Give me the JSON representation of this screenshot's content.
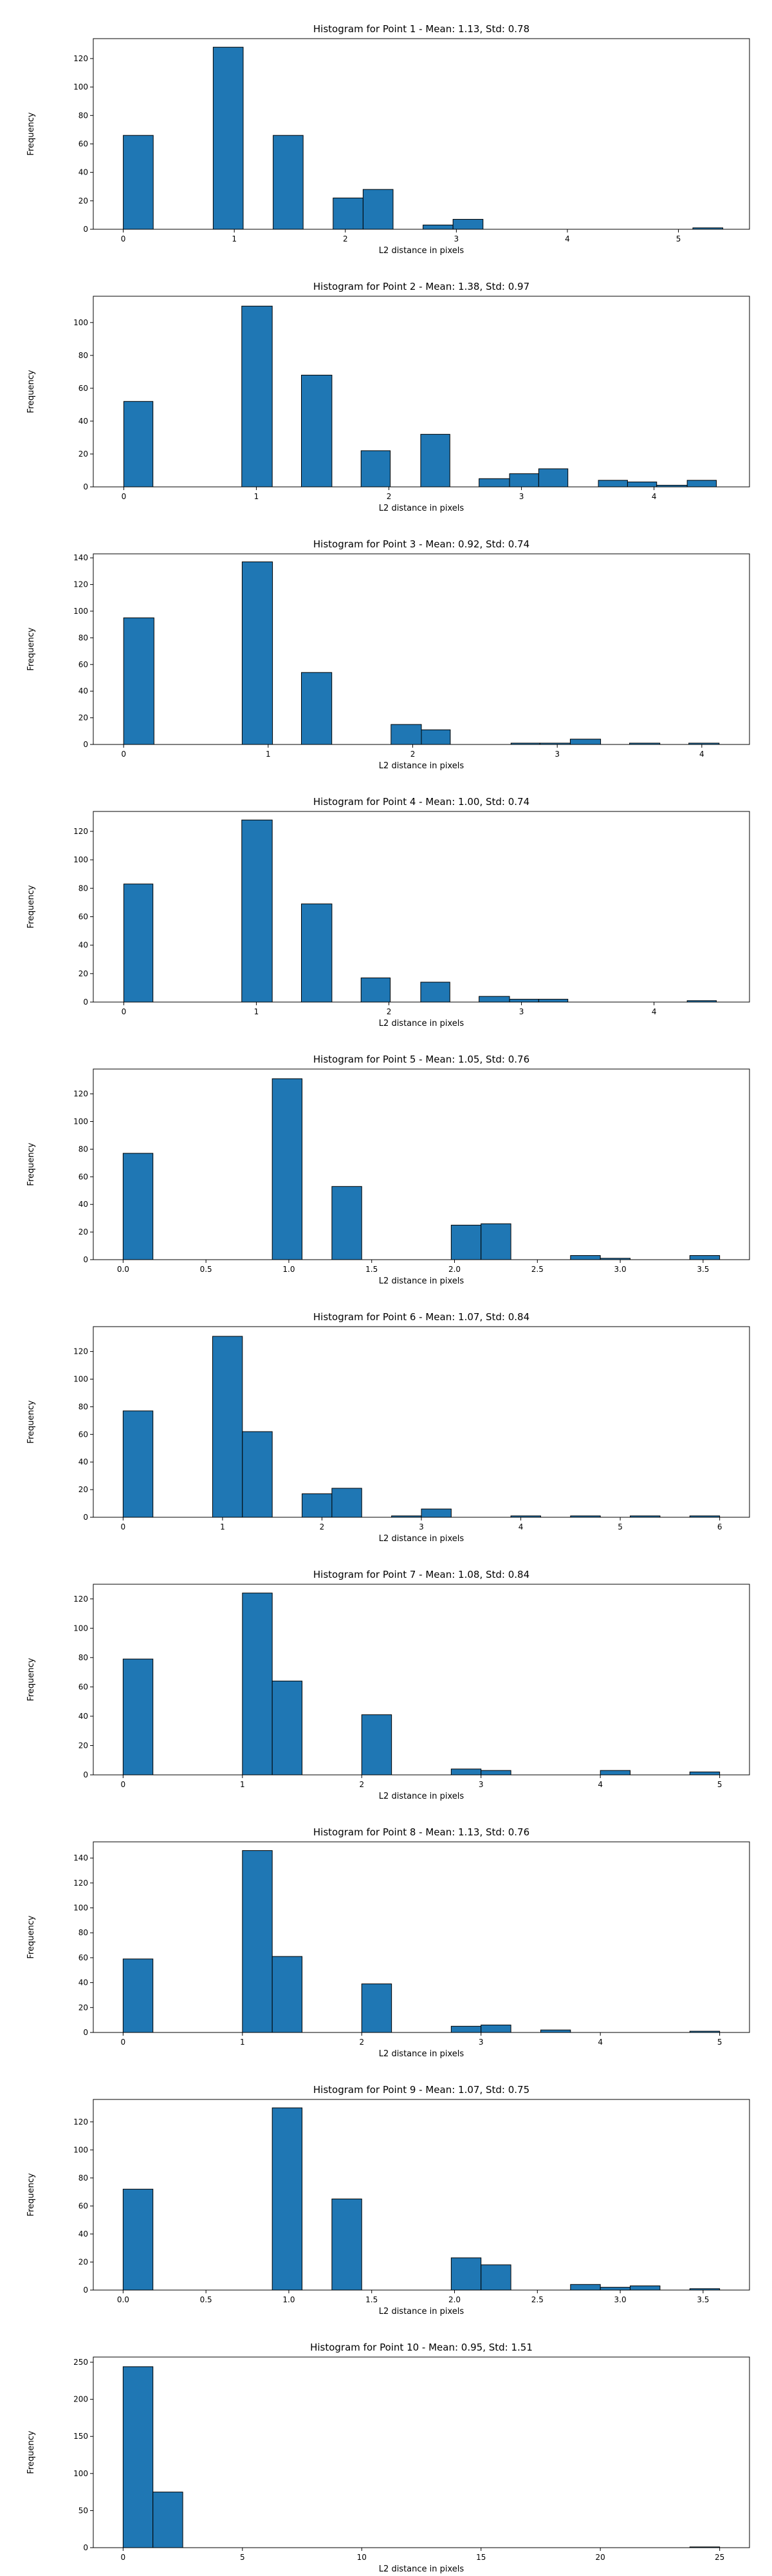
{
  "chart_data": [
    {
      "type": "bar",
      "title": "Histogram for Point 1 - Mean: 1.13, Std: 0.78",
      "xlabel": "L2 distance in pixels",
      "ylabel": "Frequency",
      "xlim": [
        -0.27,
        5.64
      ],
      "ylim": [
        0,
        134
      ],
      "xticks": [
        0,
        1,
        2,
        3,
        4,
        5
      ],
      "xtick_labels": [
        "0",
        "1",
        "2",
        "3",
        "4",
        "5"
      ],
      "yticks": [
        0,
        20,
        40,
        60,
        80,
        100,
        120
      ],
      "bins": [
        {
          "x0": 0.0,
          "x1": 0.27,
          "count": 66
        },
        {
          "x0": 0.81,
          "x1": 1.08,
          "count": 128
        },
        {
          "x0": 1.35,
          "x1": 1.62,
          "count": 66
        },
        {
          "x0": 1.89,
          "x1": 2.16,
          "count": 22
        },
        {
          "x0": 2.16,
          "x1": 2.43,
          "count": 28
        },
        {
          "x0": 2.7,
          "x1": 2.97,
          "count": 3
        },
        {
          "x0": 2.97,
          "x1": 3.24,
          "count": 7
        },
        {
          "x0": 5.13,
          "x1": 5.4,
          "count": 1
        }
      ]
    },
    {
      "type": "bar",
      "title": "Histogram for Point 2 - Mean: 1.38, Std: 0.97",
      "xlabel": "L2 distance in pixels",
      "ylabel": "Frequency",
      "xlim": [
        -0.23,
        4.72
      ],
      "ylim": [
        0,
        116
      ],
      "xticks": [
        0,
        1,
        2,
        3,
        4
      ],
      "xtick_labels": [
        "0",
        "1",
        "2",
        "3",
        "4"
      ],
      "yticks": [
        0,
        20,
        40,
        60,
        80,
        100
      ],
      "bins": [
        {
          "x0": 0.0,
          "x1": 0.22,
          "count": 52
        },
        {
          "x0": 0.89,
          "x1": 1.12,
          "count": 110
        },
        {
          "x0": 1.34,
          "x1": 1.57,
          "count": 68
        },
        {
          "x0": 1.79,
          "x1": 2.01,
          "count": 22
        },
        {
          "x0": 2.24,
          "x1": 2.46,
          "count": 32
        },
        {
          "x0": 2.68,
          "x1": 2.91,
          "count": 5
        },
        {
          "x0": 2.91,
          "x1": 3.13,
          "count": 8
        },
        {
          "x0": 3.13,
          "x1": 3.35,
          "count": 11
        },
        {
          "x0": 3.58,
          "x1": 3.8,
          "count": 4
        },
        {
          "x0": 3.8,
          "x1": 4.02,
          "count": 3
        },
        {
          "x0": 4.02,
          "x1": 4.25,
          "count": 1
        },
        {
          "x0": 4.25,
          "x1": 4.47,
          "count": 4
        }
      ]
    },
    {
      "type": "bar",
      "title": "Histogram for Point 3 - Mean: 0.92, Std: 0.74",
      "xlabel": "L2 distance in pixels",
      "ylabel": "Frequency",
      "xlim": [
        -0.21,
        4.33
      ],
      "ylim": [
        0,
        143
      ],
      "xticks": [
        0,
        1,
        2,
        3,
        4
      ],
      "xtick_labels": [
        "0",
        "1",
        "2",
        "3",
        "4"
      ],
      "yticks": [
        0,
        20,
        40,
        60,
        80,
        100,
        120,
        140
      ],
      "bins": [
        {
          "x0": 0.0,
          "x1": 0.21,
          "count": 95
        },
        {
          "x0": 0.82,
          "x1": 1.03,
          "count": 137
        },
        {
          "x0": 1.23,
          "x1": 1.44,
          "count": 54
        },
        {
          "x0": 1.85,
          "x1": 2.06,
          "count": 15
        },
        {
          "x0": 2.06,
          "x1": 2.26,
          "count": 11
        },
        {
          "x0": 2.68,
          "x1": 2.88,
          "count": 1
        },
        {
          "x0": 2.88,
          "x1": 3.09,
          "count": 1
        },
        {
          "x0": 3.09,
          "x1": 3.3,
          "count": 4
        },
        {
          "x0": 3.5,
          "x1": 3.71,
          "count": 1
        },
        {
          "x0": 3.91,
          "x1": 4.12,
          "count": 1
        }
      ]
    },
    {
      "type": "bar",
      "title": "Histogram for Point 4 - Mean: 1.00, Std: 0.74",
      "xlabel": "L2 distance in pixels",
      "ylabel": "Frequency",
      "xlim": [
        -0.23,
        4.72
      ],
      "ylim": [
        0,
        134
      ],
      "xticks": [
        0,
        1,
        2,
        3,
        4
      ],
      "xtick_labels": [
        "0",
        "1",
        "2",
        "3",
        "4"
      ],
      "yticks": [
        0,
        20,
        40,
        60,
        80,
        100,
        120
      ],
      "bins": [
        {
          "x0": 0.0,
          "x1": 0.22,
          "count": 83
        },
        {
          "x0": 0.89,
          "x1": 1.12,
          "count": 128
        },
        {
          "x0": 1.34,
          "x1": 1.57,
          "count": 69
        },
        {
          "x0": 1.79,
          "x1": 2.01,
          "count": 17
        },
        {
          "x0": 2.24,
          "x1": 2.46,
          "count": 14
        },
        {
          "x0": 2.68,
          "x1": 2.91,
          "count": 4
        },
        {
          "x0": 2.91,
          "x1": 3.13,
          "count": 2
        },
        {
          "x0": 3.13,
          "x1": 3.35,
          "count": 2
        },
        {
          "x0": 4.25,
          "x1": 4.47,
          "count": 1
        }
      ]
    },
    {
      "type": "bar",
      "title": "Histogram for Point 5 - Mean: 1.05, Std: 0.76",
      "xlabel": "L2 distance in pixels",
      "ylabel": "Frequency",
      "xlim": [
        -0.18,
        3.78
      ],
      "ylim": [
        0,
        138
      ],
      "xticks": [
        0,
        0.5,
        1,
        1.5,
        2,
        2.5,
        3,
        3.5
      ],
      "xtick_labels": [
        "0.0",
        "0.5",
        "1.0",
        "1.5",
        "2.0",
        "2.5",
        "3.0",
        "3.5"
      ],
      "yticks": [
        0,
        20,
        40,
        60,
        80,
        100,
        120
      ],
      "bins": [
        {
          "x0": 0.0,
          "x1": 0.18,
          "count": 77
        },
        {
          "x0": 0.9,
          "x1": 1.08,
          "count": 131
        },
        {
          "x0": 1.26,
          "x1": 1.44,
          "count": 53
        },
        {
          "x0": 1.98,
          "x1": 2.16,
          "count": 25
        },
        {
          "x0": 2.16,
          "x1": 2.34,
          "count": 26
        },
        {
          "x0": 2.7,
          "x1": 2.88,
          "count": 3
        },
        {
          "x0": 2.88,
          "x1": 3.06,
          "count": 1
        },
        {
          "x0": 3.42,
          "x1": 3.6,
          "count": 3
        }
      ]
    },
    {
      "type": "bar",
      "title": "Histogram for Point 6 - Mean: 1.07, Std: 0.84",
      "xlabel": "L2 distance in pixels",
      "ylabel": "Frequency",
      "xlim": [
        -0.3,
        6.3
      ],
      "ylim": [
        0,
        138
      ],
      "xticks": [
        0,
        1,
        2,
        3,
        4,
        5,
        6
      ],
      "xtick_labels": [
        "0",
        "1",
        "2",
        "3",
        "4",
        "5",
        "6"
      ],
      "yticks": [
        0,
        20,
        40,
        60,
        80,
        100,
        120
      ],
      "bins": [
        {
          "x0": 0.0,
          "x1": 0.3,
          "count": 77
        },
        {
          "x0": 0.9,
          "x1": 1.2,
          "count": 131
        },
        {
          "x0": 1.2,
          "x1": 1.5,
          "count": 62
        },
        {
          "x0": 1.8,
          "x1": 2.1,
          "count": 17
        },
        {
          "x0": 2.1,
          "x1": 2.4,
          "count": 21
        },
        {
          "x0": 2.7,
          "x1": 3.0,
          "count": 1
        },
        {
          "x0": 3.0,
          "x1": 3.3,
          "count": 6
        },
        {
          "x0": 3.9,
          "x1": 4.2,
          "count": 1
        },
        {
          "x0": 4.5,
          "x1": 4.8,
          "count": 1
        },
        {
          "x0": 5.1,
          "x1": 5.4,
          "count": 1
        },
        {
          "x0": 5.7,
          "x1": 6.0,
          "count": 1
        }
      ]
    },
    {
      "type": "bar",
      "title": "Histogram for Point 7 - Mean: 1.08, Std: 0.84",
      "xlabel": "L2 distance in pixels",
      "ylabel": "Frequency",
      "xlim": [
        -0.25,
        5.25
      ],
      "ylim": [
        0,
        130
      ],
      "xticks": [
        0,
        1,
        2,
        3,
        4,
        5
      ],
      "xtick_labels": [
        "0",
        "1",
        "2",
        "3",
        "4",
        "5"
      ],
      "yticks": [
        0,
        20,
        40,
        60,
        80,
        100,
        120
      ],
      "bins": [
        {
          "x0": 0.0,
          "x1": 0.25,
          "count": 79
        },
        {
          "x0": 1.0,
          "x1": 1.25,
          "count": 124
        },
        {
          "x0": 1.25,
          "x1": 1.5,
          "count": 64
        },
        {
          "x0": 2.0,
          "x1": 2.25,
          "count": 41
        },
        {
          "x0": 2.75,
          "x1": 3.0,
          "count": 4
        },
        {
          "x0": 3.0,
          "x1": 3.25,
          "count": 3
        },
        {
          "x0": 4.0,
          "x1": 4.25,
          "count": 3
        },
        {
          "x0": 4.75,
          "x1": 5.0,
          "count": 2
        }
      ]
    },
    {
      "type": "bar",
      "title": "Histogram for Point 8 - Mean: 1.13, Std: 0.76",
      "xlabel": "L2 distance in pixels",
      "ylabel": "Frequency",
      "xlim": [
        -0.25,
        5.25
      ],
      "ylim": [
        0,
        153
      ],
      "xticks": [
        0,
        1,
        2,
        3,
        4,
        5
      ],
      "xtick_labels": [
        "0",
        "1",
        "2",
        "3",
        "4",
        "5"
      ],
      "yticks": [
        0,
        20,
        40,
        60,
        80,
        100,
        120,
        140
      ],
      "bins": [
        {
          "x0": 0.0,
          "x1": 0.25,
          "count": 59
        },
        {
          "x0": 1.0,
          "x1": 1.25,
          "count": 146
        },
        {
          "x0": 1.25,
          "x1": 1.5,
          "count": 61
        },
        {
          "x0": 2.0,
          "x1": 2.25,
          "count": 39
        },
        {
          "x0": 2.75,
          "x1": 3.0,
          "count": 5
        },
        {
          "x0": 3.0,
          "x1": 3.25,
          "count": 6
        },
        {
          "x0": 3.5,
          "x1": 3.75,
          "count": 2
        },
        {
          "x0": 4.75,
          "x1": 5.0,
          "count": 1
        }
      ]
    },
    {
      "type": "bar",
      "title": "Histogram for Point 9 - Mean: 1.07, Std: 0.75",
      "xlabel": "L2 distance in pixels",
      "ylabel": "Frequency",
      "xlim": [
        -0.18,
        3.78
      ],
      "ylim": [
        0,
        136
      ],
      "xticks": [
        0,
        0.5,
        1,
        1.5,
        2,
        2.5,
        3,
        3.5
      ],
      "xtick_labels": [
        "0.0",
        "0.5",
        "1.0",
        "1.5",
        "2.0",
        "2.5",
        "3.0",
        "3.5"
      ],
      "yticks": [
        0,
        20,
        40,
        60,
        80,
        100,
        120
      ],
      "bins": [
        {
          "x0": 0.0,
          "x1": 0.18,
          "count": 72
        },
        {
          "x0": 0.9,
          "x1": 1.08,
          "count": 130
        },
        {
          "x0": 1.26,
          "x1": 1.44,
          "count": 65
        },
        {
          "x0": 1.98,
          "x1": 2.16,
          "count": 23
        },
        {
          "x0": 2.16,
          "x1": 2.34,
          "count": 18
        },
        {
          "x0": 2.7,
          "x1": 2.88,
          "count": 4
        },
        {
          "x0": 2.88,
          "x1": 3.06,
          "count": 2
        },
        {
          "x0": 3.06,
          "x1": 3.24,
          "count": 3
        },
        {
          "x0": 3.42,
          "x1": 3.6,
          "count": 1
        }
      ]
    },
    {
      "type": "bar",
      "title": "Histogram for Point 10 - Mean: 0.95, Std: 1.51",
      "xlabel": "L2 distance in pixels",
      "ylabel": "Frequency",
      "xlim": [
        -1.25,
        26.25
      ],
      "ylim": [
        0,
        257
      ],
      "xticks": [
        0,
        5,
        10,
        15,
        20,
        25
      ],
      "xtick_labels": [
        "0",
        "5",
        "10",
        "15",
        "20",
        "25"
      ],
      "yticks": [
        0,
        50,
        100,
        150,
        200,
        250
      ],
      "bins": [
        {
          "x0": 0.0,
          "x1": 1.25,
          "count": 244
        },
        {
          "x0": 1.25,
          "x1": 2.5,
          "count": 75
        },
        {
          "x0": 23.75,
          "x1": 25.0,
          "count": 1
        }
      ]
    }
  ]
}
